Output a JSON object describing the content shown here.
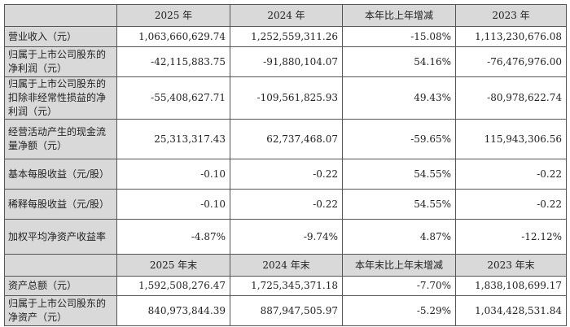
{
  "header1": [
    "",
    "2025 年",
    "2024 年",
    "本年比上年增减",
    "2023 年"
  ],
  "header2": [
    "",
    "2025 年末",
    "2024 年末",
    "本年末比上年末增减",
    "2023 年末"
  ],
  "rows1": [
    {
      "label": "营业收入（元）",
      "v2025": "1,063,660,629.74",
      "v2024": "1,252,559,311.26",
      "change": "-15.08%",
      "v2023": "1,113,230,676.08"
    },
    {
      "label": "归属于上市公司股东的净利润（元）",
      "v2025": "-42,115,883.75",
      "v2024": "-91,880,104.07",
      "change": "54.16%",
      "v2023": "-76,476,976.00"
    },
    {
      "label": "归属于上市公司股东的扣除非经常性损益的净利润（元）",
      "v2025": "-55,408,627.71",
      "v2024": "-109,561,825.93",
      "change": "49.43%",
      "v2023": "-80,978,622.74"
    },
    {
      "label": "经营活动产生的现金流量净额（元）",
      "v2025": "25,313,317.43",
      "v2024": "62,737,468.07",
      "change": "-59.65%",
      "v2023": "115,943,306.56"
    },
    {
      "label": "基本每股收益（元/股）",
      "v2025": "-0.10",
      "v2024": "-0.22",
      "change": "54.55%",
      "v2023": "-0.22"
    },
    {
      "label": "稀释每股收益（元/股）",
      "v2025": "-0.10",
      "v2024": "-0.22",
      "change": "54.55%",
      "v2023": "-0.22"
    },
    {
      "label": "加权平均净资产收益率",
      "v2025": "-4.87%",
      "v2024": "-9.74%",
      "change": "4.87%",
      "v2023": "-12.12%"
    }
  ],
  "rows2": [
    {
      "label": "资产总额（元）",
      "v2025": "1,592,508,276.47",
      "v2024": "1,725,345,371.18",
      "change": "-7.70%",
      "v2023": "1,838,108,699.17"
    },
    {
      "label": "归属于上市公司股东的净资产（元）",
      "v2025": "840,973,844.39",
      "v2024": "887,947,505.97",
      "change": "-5.29%",
      "v2023": "1,034,428,531.84"
    }
  ]
}
